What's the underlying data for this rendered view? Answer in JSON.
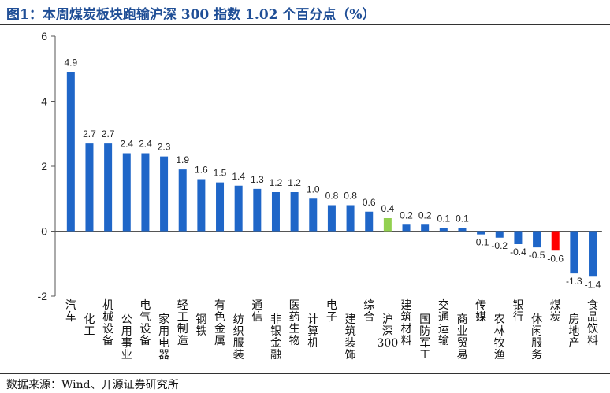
{
  "page": {
    "title": "图1：本周煤炭板块跑输沪深 300 指数 1.02 个百分点（%）",
    "source": "数据来源：Wind、开源证券研究所"
  },
  "colors": {
    "default_bar": "#1f66c8",
    "benchmark_bar": "#92d050",
    "highlight_bar": "#ff0000",
    "title": "#1f4e96"
  },
  "chart_data": {
    "type": "bar",
    "title": "图1：本周煤炭板块跑输沪深 300 指数 1.02 个百分点（%）",
    "ylim": [
      -2,
      6
    ],
    "yticks": [
      -2,
      0,
      2,
      4,
      6
    ],
    "ytick_labels": [
      "-2",
      "0",
      "2",
      "4",
      "6"
    ],
    "grid": false,
    "categories": [
      "汽车",
      "化工",
      "机械设备",
      "公用事业",
      "电气设备",
      "家用电器",
      "轻工制造",
      "钢铁",
      "有色金属",
      "纺织服装",
      "通信",
      "非银金融",
      "医药生物",
      "计算机",
      "电子",
      "建筑装饰",
      "综合",
      "沪深300",
      "建筑材料",
      "国防军工",
      "交通运输",
      "商业贸易",
      "传媒",
      "农林牧渔",
      "银行",
      "休闲服务",
      "煤炭",
      "房地产",
      "食品饮料"
    ],
    "values": [
      4.9,
      2.7,
      2.7,
      2.4,
      2.4,
      2.3,
      1.9,
      1.6,
      1.5,
      1.4,
      1.3,
      1.2,
      1.2,
      1.0,
      0.8,
      0.8,
      0.6,
      0.4,
      0.2,
      0.2,
      0.1,
      0.1,
      -0.1,
      -0.2,
      -0.4,
      -0.5,
      -0.6,
      -1.3,
      -1.4
    ],
    "value_labels": [
      "4.9",
      "2.7",
      "2.7",
      "2.4",
      "2.4",
      "2.3",
      "1.9",
      "1.6",
      "1.5",
      "1.4",
      "1.3",
      "1.2",
      "1.2",
      "1.0",
      "0.8",
      "0.8",
      "0.6",
      "0.4",
      "0.2",
      "0.2",
      "0.1",
      "0.1",
      "-0.1",
      "-0.2",
      "-0.4",
      "-0.5",
      "-0.6",
      "-1.3",
      "-1.4"
    ],
    "benchmark_index": 17,
    "highlight_index": 26
  }
}
